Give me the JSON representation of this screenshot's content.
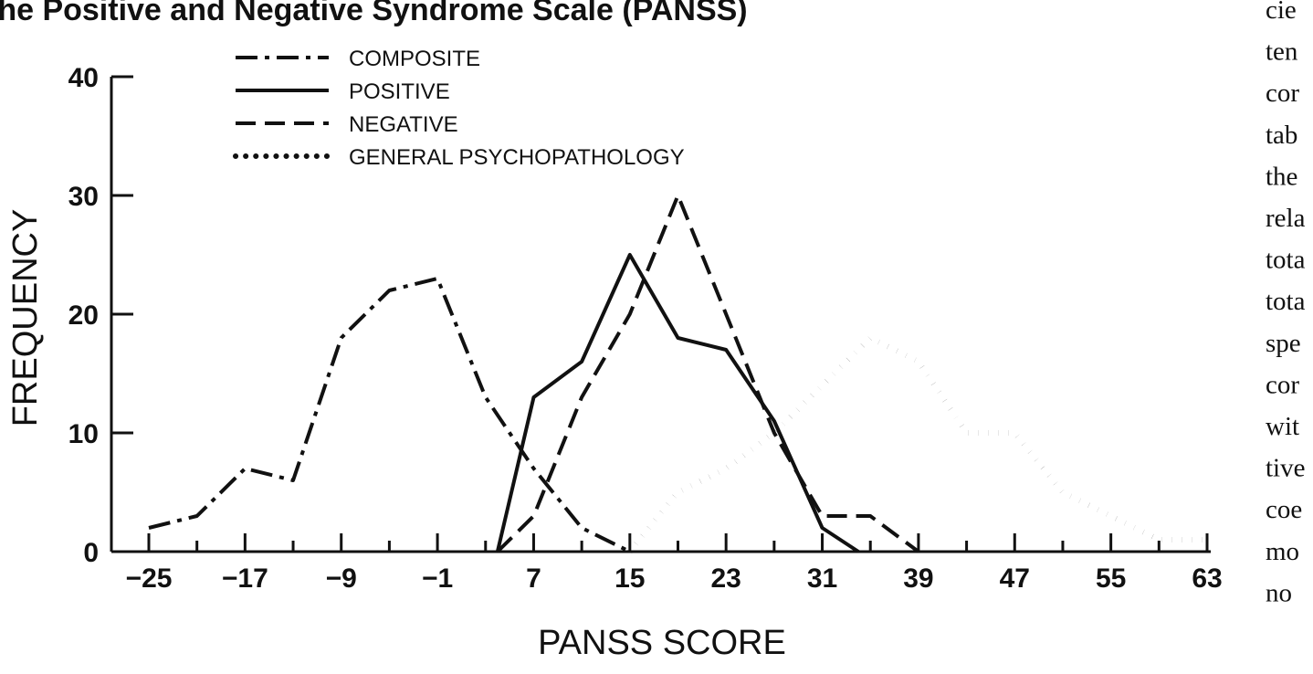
{
  "chart_data": {
    "type": "line",
    "title": "the Positive and Negative Syndrome Scale (PANSS)",
    "xlabel": "PANSS SCORE",
    "ylabel": "FREQUENCY",
    "xlim": [
      -27,
      64
    ],
    "ylim": [
      0,
      40
    ],
    "x_ticks": [
      -25,
      -17,
      -9,
      -1,
      7,
      15,
      23,
      31,
      39,
      47,
      55,
      63
    ],
    "y_ticks": [
      0,
      10,
      20,
      30,
      40
    ],
    "grid": false,
    "legend_position": "top-left",
    "series": [
      {
        "name": "COMPOSITE",
        "style": "dash-dot",
        "points": [
          [
            -25,
            2
          ],
          [
            -21,
            3
          ],
          [
            -17,
            7
          ],
          [
            -13,
            6
          ],
          [
            -9,
            18
          ],
          [
            -5,
            22
          ],
          [
            -1,
            23
          ],
          [
            3,
            13
          ],
          [
            7,
            7
          ],
          [
            11,
            2
          ],
          [
            15,
            0
          ]
        ]
      },
      {
        "name": "POSITIVE",
        "style": "solid",
        "points": [
          [
            4,
            0
          ],
          [
            7,
            13
          ],
          [
            11,
            16
          ],
          [
            15,
            25
          ],
          [
            19,
            18
          ],
          [
            23,
            17
          ],
          [
            27,
            11
          ],
          [
            31,
            2
          ],
          [
            34,
            0
          ]
        ]
      },
      {
        "name": "NEGATIVE",
        "style": "dashed",
        "points": [
          [
            4,
            0
          ],
          [
            7,
            3
          ],
          [
            11,
            13
          ],
          [
            15,
            20
          ],
          [
            19,
            30
          ],
          [
            23,
            20
          ],
          [
            27,
            10
          ],
          [
            31,
            3
          ],
          [
            35,
            3
          ],
          [
            39,
            0
          ]
        ]
      },
      {
        "name": "GENERAL PSYCHOPATHOLOGY",
        "style": "dotted",
        "points": [
          [
            15,
            0
          ],
          [
            19,
            5
          ],
          [
            23,
            7
          ],
          [
            27,
            10
          ],
          [
            31,
            14
          ],
          [
            35,
            18
          ],
          [
            39,
            16
          ],
          [
            43,
            10
          ],
          [
            47,
            10
          ],
          [
            51,
            5
          ],
          [
            55,
            3
          ],
          [
            59,
            1
          ],
          [
            63,
            1
          ]
        ]
      }
    ]
  },
  "side_text": {
    "lines": [
      "cie",
      "ten",
      "cor",
      "tab",
      "the",
      "rela",
      "tota",
      "tota",
      "spe",
      "cor",
      "wit",
      "tive",
      "coe",
      "mo",
      "no"
    ]
  }
}
